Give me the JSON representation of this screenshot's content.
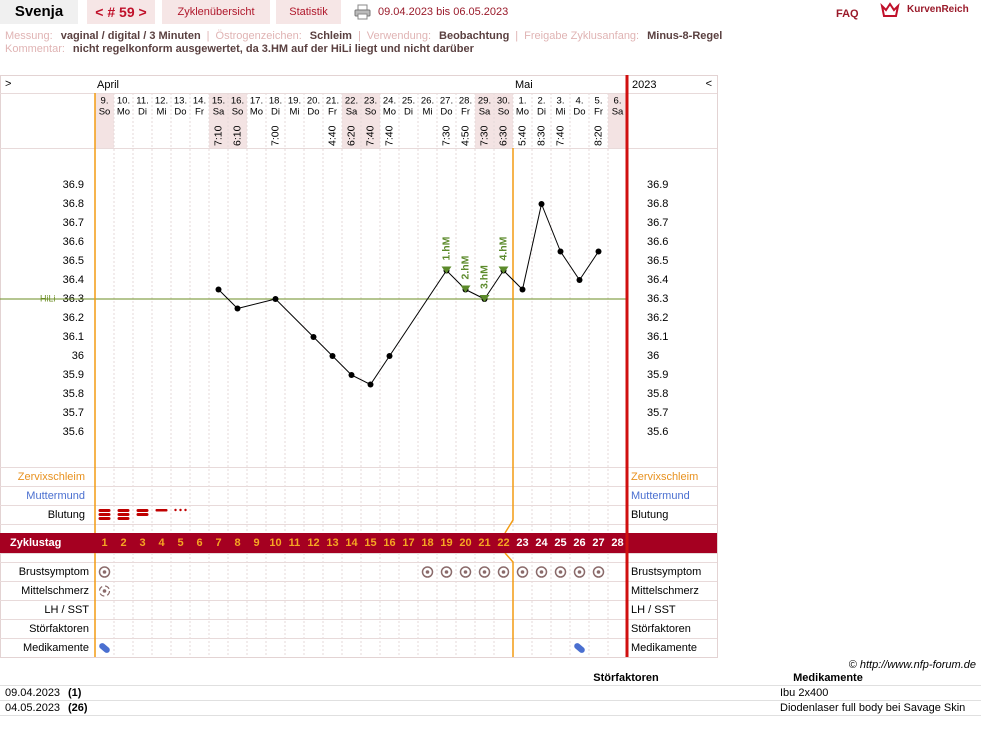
{
  "header": {
    "user": "Svenja",
    "cycle_nav": "< # 59 >",
    "tabs": [
      "Zyklenübersicht",
      "Statistik"
    ],
    "date_range": "09.04.2023 bis 06.05.2023",
    "faq": "FAQ",
    "logo": "KurvenReich"
  },
  "info": {
    "fields": [
      {
        "label": "Messung:",
        "value": "vaginal / digital / 3 Minuten"
      },
      {
        "label": "Östrogenzeichen:",
        "value": "Schleim"
      },
      {
        "label": "Verwendung:",
        "value": "Beobachtung"
      },
      {
        "label": "Freigabe Zyklusanfang:",
        "value": "Minus-8-Regel"
      }
    ],
    "comment": {
      "label": "Kommentar:",
      "value": "nicht regelkonform ausgewertet, da 3.HM auf der HiLi liegt und nicht darüber"
    }
  },
  "chart_data": {
    "type": "line",
    "nav_left": ">",
    "nav_right": "<",
    "months": [
      "April",
      "Mai"
    ],
    "month_starts": [
      0,
      22
    ],
    "year": "2023",
    "categories": [
      "9.",
      "10.",
      "11.",
      "12.",
      "13.",
      "14.",
      "15.",
      "16.",
      "17.",
      "18.",
      "19.",
      "20.",
      "21.",
      "22.",
      "23.",
      "24.",
      "25.",
      "26.",
      "27.",
      "28.",
      "29.",
      "30.",
      "1.",
      "2.",
      "3.",
      "4.",
      "5.",
      "6."
    ],
    "weekdays": [
      "So",
      "Mo",
      "Di",
      "Mi",
      "Do",
      "Fr",
      "Sa",
      "So",
      "Mo",
      "Di",
      "Mi",
      "Do",
      "Fr",
      "Sa",
      "So",
      "Mo",
      "Di",
      "Mi",
      "Do",
      "Fr",
      "Sa",
      "So",
      "Mo",
      "Di",
      "Mi",
      "Do",
      "Fr",
      "Sa"
    ],
    "shaded_columns": [
      0,
      6,
      7,
      13,
      14,
      20,
      21,
      27
    ],
    "times": [
      null,
      null,
      null,
      null,
      null,
      null,
      "7:10",
      "6:10",
      null,
      "7:00",
      null,
      null,
      "4:40",
      "6:20",
      "7:40",
      "7:40",
      null,
      null,
      "7:30",
      "4:50",
      "7:30",
      "6:30",
      "5:40",
      "8:30",
      "7:40",
      null,
      "8:20",
      null
    ],
    "values": [
      null,
      null,
      null,
      null,
      null,
      null,
      36.35,
      36.25,
      null,
      36.3,
      null,
      36.1,
      36.0,
      35.9,
      35.85,
      36.0,
      null,
      null,
      36.45,
      36.35,
      36.3,
      36.45,
      36.35,
      36.8,
      36.55,
      36.4,
      36.55,
      null
    ],
    "color": "#000000",
    "ylim": [
      35.6,
      36.9
    ],
    "yticks": [
      35.6,
      35.7,
      35.8,
      35.9,
      36,
      36.1,
      36.2,
      36.3,
      36.4,
      36.5,
      36.6,
      36.7,
      36.8,
      36.9
    ],
    "coverline": {
      "label": "HiLi",
      "value": 36.3,
      "color": "#6b8e23"
    },
    "high_markers": {
      "labels": [
        "1.hM",
        "2.hM",
        "3.hM",
        "4.hM"
      ],
      "indices": [
        18,
        19,
        20,
        21
      ],
      "color": "#5b8a2a"
    },
    "upper_rows": [
      "Zervixschleim",
      "Muttermund",
      "Blutung"
    ],
    "cycle_day_label": "Zyklustag",
    "cycle_days": [
      1,
      2,
      3,
      4,
      5,
      6,
      7,
      8,
      9,
      10,
      11,
      12,
      13,
      14,
      15,
      16,
      17,
      18,
      19,
      20,
      21,
      22,
      23,
      24,
      25,
      26,
      27,
      28
    ],
    "evaluation_line_index": 22,
    "lower_rows": [
      "Brustsymptom",
      "Mittelschmerz",
      "LH / SST",
      "Störfaktoren",
      "Medikamente"
    ]
  },
  "footer": {
    "copyright": "© http://www.nfp-forum.de",
    "columns": [
      "Störfaktoren",
      "Medikamente"
    ],
    "rows": [
      [
        "09.04.2023",
        "(1)",
        null,
        "Ibu 2x400"
      ],
      [
        "04.05.2023",
        "(26)",
        null,
        "Diodenlaser full body bei Savage Skin"
      ]
    ]
  }
}
